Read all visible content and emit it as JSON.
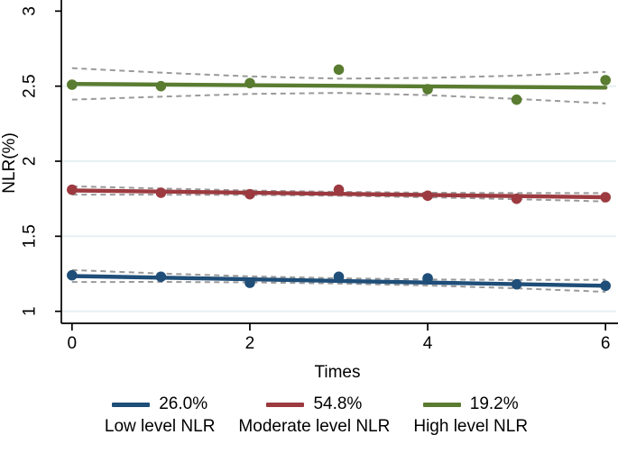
{
  "chart_data": {
    "type": "line",
    "title": "",
    "xlabel": "Times",
    "ylabel": "NLR(%)",
    "x": [
      0,
      1,
      2,
      3,
      4,
      5,
      6
    ],
    "xticks": [
      "0",
      "2",
      "4",
      "6"
    ],
    "xtick_values": [
      0,
      2,
      4,
      6
    ],
    "yticks": [
      "1",
      "1.5",
      "2",
      "2.5",
      "3"
    ],
    "ytick_values": [
      1,
      1.5,
      2,
      2.5,
      3
    ],
    "grid_tick_values": [
      1,
      1.5,
      2,
      2.5
    ],
    "xlim": [
      -0.12,
      6.12
    ],
    "ylim": [
      0.92,
      3.05
    ],
    "grid": "horizontal",
    "legend_position": "bottom",
    "gridline_color": "#e7f0f2",
    "axis_color": "#000000",
    "ci_color": "#9a9a9a",
    "series": [
      {
        "name": "Low level NLR",
        "percent": "26.0%",
        "color": "#1f4e78",
        "points": [
          1.24,
          1.23,
          1.19,
          1.23,
          1.22,
          1.18,
          1.17
        ],
        "fit": [
          1.235,
          1.17
        ],
        "ci_upper": [
          1.275,
          1.252,
          1.233,
          1.22,
          1.212,
          1.209,
          1.21
        ],
        "ci_lower": [
          1.195,
          1.196,
          1.193,
          1.185,
          1.172,
          1.153,
          1.13
        ]
      },
      {
        "name": "Moderate level NLR",
        "percent": "54.8%",
        "color": "#9c3a40",
        "points": [
          1.81,
          1.79,
          1.78,
          1.81,
          1.77,
          1.75,
          1.76
        ],
        "fit": [
          1.805,
          1.76
        ],
        "ci_upper": [
          1.833,
          1.818,
          1.805,
          1.796,
          1.79,
          1.788,
          1.788
        ],
        "ci_lower": [
          1.777,
          1.777,
          1.775,
          1.77,
          1.76,
          1.747,
          1.732
        ]
      },
      {
        "name": "High level NLR",
        "percent": "19.2%",
        "color": "#5a7c31",
        "points": [
          2.51,
          2.5,
          2.52,
          2.61,
          2.48,
          2.41,
          2.54
        ],
        "fit": [
          2.515,
          2.49
        ],
        "ci_upper": [
          2.62,
          2.59,
          2.565,
          2.55,
          2.555,
          2.57,
          2.595
        ],
        "ci_lower": [
          2.41,
          2.43,
          2.448,
          2.455,
          2.44,
          2.415,
          2.385
        ]
      }
    ]
  }
}
